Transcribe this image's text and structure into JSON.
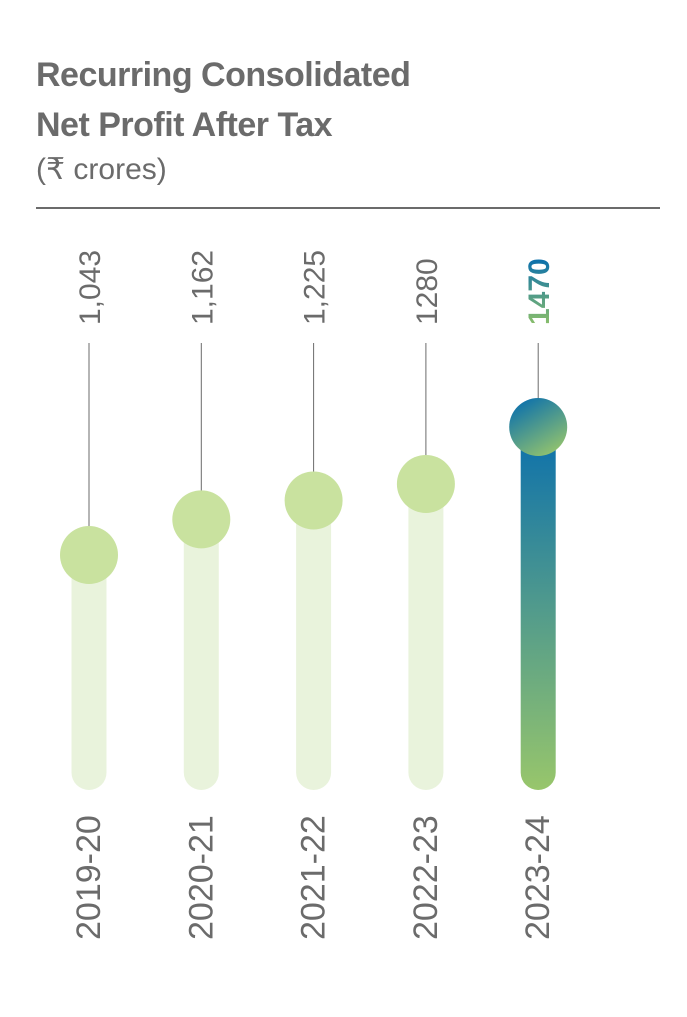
{
  "header": {
    "title_line1": "Recurring Consolidated",
    "title_line2": "Net Profit After Tax",
    "subtitle": "(₹ crores)"
  },
  "chart_data": {
    "type": "bar",
    "title": "Recurring Consolidated Net Profit After Tax",
    "ylabel": "₹ crores",
    "categories": [
      "2019-20",
      "2020-21",
      "2021-22",
      "2022-23",
      "2023-24"
    ],
    "values": [
      1043,
      1162,
      1225,
      1280,
      1470
    ],
    "value_labels": [
      "1,043",
      "1,162",
      "1,225",
      "1280",
      "1470"
    ],
    "highlight_index": 4,
    "colors": {
      "bar": "#e9f3dc",
      "dot": "#c9e29f",
      "label": "#6b6b6b",
      "line": "#6b6b6b",
      "highlight_top": "#0a6fad",
      "highlight_bottom": "#98c66b",
      "highlight_label": "#8bbf6a"
    }
  }
}
